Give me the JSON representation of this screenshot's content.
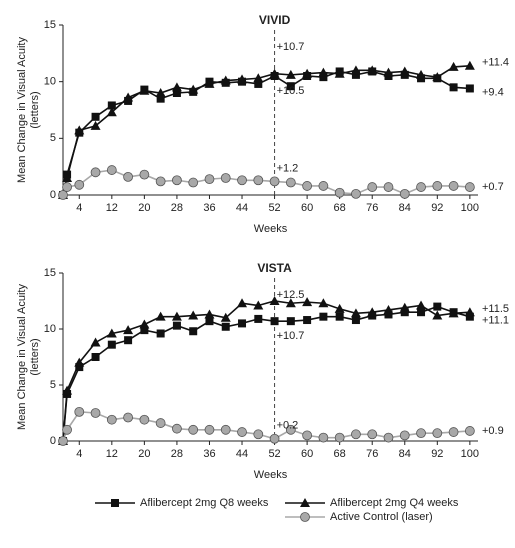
{
  "chart_data": [
    {
      "type": "line",
      "title": "VIVID",
      "xlabel": "Weeks",
      "ylabel": [
        "Mean Change in Visual Acuity",
        "(letters)"
      ],
      "x": [
        0,
        1,
        4,
        8,
        12,
        16,
        20,
        24,
        28,
        32,
        36,
        40,
        44,
        48,
        52,
        56,
        60,
        64,
        68,
        72,
        76,
        80,
        84,
        88,
        92,
        96,
        100
      ],
      "xlim": [
        0,
        102
      ],
      "xticks": [
        4,
        12,
        20,
        28,
        36,
        44,
        52,
        60,
        68,
        76,
        84,
        92,
        100
      ],
      "ylim": [
        0,
        15
      ],
      "yticks": [
        0,
        5,
        10,
        15
      ],
      "vline_x": 52,
      "grid": false,
      "series": [
        {
          "name": "Aflibercept 2mg Q8 weeks",
          "color": "#111111",
          "marker": "square",
          "values": [
            0,
            1.8,
            5.5,
            6.9,
            7.9,
            8.3,
            9.3,
            8.5,
            9.0,
            9.1,
            10.0,
            9.9,
            10.0,
            9.8,
            10.5,
            9.6,
            10.5,
            10.4,
            10.9,
            10.6,
            10.9,
            10.5,
            10.6,
            10.3,
            10.3,
            9.5,
            9.4
          ],
          "value_labels": [
            null,
            null,
            null,
            null,
            null,
            null,
            null,
            null,
            null,
            null,
            null,
            null,
            null,
            null,
            "+10.5",
            null,
            null,
            null,
            null,
            null,
            null,
            null,
            null,
            null,
            null,
            null,
            "+9.4"
          ]
        },
        {
          "name": "Aflibercept 2mg Q4 weeks",
          "color": "#111111",
          "marker": "triangle",
          "values": [
            0,
            1.5,
            5.7,
            6.1,
            7.3,
            8.6,
            9.2,
            9.0,
            9.5,
            9.3,
            9.8,
            10.1,
            10.2,
            10.3,
            10.7,
            10.6,
            10.7,
            10.8,
            10.7,
            11.0,
            11.0,
            10.8,
            10.9,
            10.6,
            10.4,
            11.3,
            11.4
          ],
          "value_labels": [
            null,
            null,
            null,
            null,
            null,
            null,
            null,
            null,
            null,
            null,
            null,
            null,
            null,
            null,
            "+10.7",
            null,
            null,
            null,
            null,
            null,
            null,
            null,
            null,
            null,
            null,
            null,
            "+11.4"
          ]
        },
        {
          "name": "Active Control (laser)",
          "color": "#a8a8a8",
          "marker": "circle",
          "values": [
            0,
            0.7,
            0.9,
            2.0,
            2.2,
            1.6,
            1.8,
            1.2,
            1.3,
            1.1,
            1.4,
            1.5,
            1.3,
            1.3,
            1.2,
            1.1,
            0.8,
            0.8,
            0.2,
            0.1,
            0.7,
            0.7,
            0.1,
            0.7,
            0.8,
            0.8,
            0.7
          ],
          "value_labels": [
            null,
            null,
            null,
            null,
            null,
            null,
            null,
            null,
            null,
            null,
            null,
            null,
            null,
            null,
            "+1.2",
            null,
            null,
            null,
            null,
            null,
            null,
            null,
            null,
            null,
            null,
            null,
            "+0.7"
          ]
        }
      ]
    },
    {
      "type": "line",
      "title": "VISTA",
      "xlabel": "Weeks",
      "ylabel": [
        "Mean Change in Visual Acuity",
        "(letters)"
      ],
      "x": [
        0,
        1,
        4,
        8,
        12,
        16,
        20,
        24,
        28,
        32,
        36,
        40,
        44,
        48,
        52,
        56,
        60,
        64,
        68,
        72,
        76,
        80,
        84,
        88,
        92,
        96,
        100
      ],
      "xlim": [
        0,
        102
      ],
      "xticks": [
        4,
        12,
        20,
        28,
        36,
        44,
        52,
        60,
        68,
        76,
        84,
        92,
        100
      ],
      "ylim": [
        0,
        15
      ],
      "yticks": [
        0,
        5,
        10,
        15
      ],
      "vline_x": 52,
      "grid": false,
      "series": [
        {
          "name": "Aflibercept 2mg Q8 weeks",
          "color": "#111111",
          "marker": "square",
          "values": [
            0,
            4.2,
            6.6,
            7.5,
            8.6,
            9.0,
            9.9,
            9.6,
            10.3,
            9.8,
            10.7,
            10.2,
            10.5,
            10.9,
            10.7,
            10.7,
            10.8,
            11.1,
            11.1,
            10.8,
            11.2,
            11.3,
            11.5,
            11.5,
            12.0,
            11.5,
            11.1
          ],
          "value_labels": [
            null,
            null,
            null,
            null,
            null,
            null,
            null,
            null,
            null,
            null,
            null,
            null,
            null,
            null,
            "+10.7",
            null,
            null,
            null,
            null,
            null,
            null,
            null,
            null,
            null,
            null,
            null,
            "+11.1"
          ]
        },
        {
          "name": "Aflibercept 2mg Q4 weeks",
          "color": "#111111",
          "marker": "triangle",
          "values": [
            0,
            4.5,
            7.0,
            8.8,
            9.6,
            9.9,
            10.4,
            11.1,
            11.1,
            11.2,
            11.3,
            11.0,
            12.3,
            12.1,
            12.5,
            12.3,
            12.4,
            12.3,
            11.8,
            11.4,
            11.5,
            11.7,
            11.9,
            12.1,
            11.2,
            11.4,
            11.5
          ],
          "value_labels": [
            null,
            null,
            null,
            null,
            null,
            null,
            null,
            null,
            null,
            null,
            null,
            null,
            null,
            null,
            "+12.5",
            null,
            null,
            null,
            null,
            null,
            null,
            null,
            null,
            null,
            null,
            null,
            "+11.5"
          ]
        },
        {
          "name": "Active Control (laser)",
          "color": "#a8a8a8",
          "marker": "circle",
          "values": [
            0,
            1.0,
            2.6,
            2.5,
            1.9,
            2.1,
            1.9,
            1.6,
            1.1,
            1.0,
            1.0,
            1.0,
            0.8,
            0.6,
            0.2,
            1.0,
            0.5,
            0.3,
            0.3,
            0.6,
            0.6,
            0.3,
            0.5,
            0.7,
            0.7,
            0.8,
            0.9
          ],
          "value_labels": [
            null,
            null,
            null,
            null,
            null,
            null,
            null,
            null,
            null,
            null,
            null,
            null,
            null,
            null,
            "+0.2",
            null,
            null,
            null,
            null,
            null,
            null,
            null,
            null,
            null,
            null,
            null,
            "+0.9"
          ]
        }
      ]
    }
  ]
}
